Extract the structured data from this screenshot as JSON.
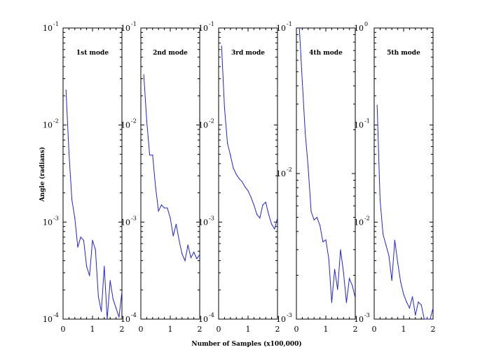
{
  "chart_data": {
    "type": "line",
    "xlabel": "Number of Samples (x100,000)",
    "ylabel": "Angle (radians)",
    "yscale": "log",
    "xlim": [
      0,
      2
    ],
    "x_ticks": [
      "0",
      "1",
      "2"
    ],
    "grid": false,
    "panels": [
      {
        "title": "1st mode",
        "ylim": [
          0.0001,
          0.1
        ],
        "y_ticks": [
          {
            "base": "10",
            "exp": "-1"
          },
          {
            "base": "10",
            "exp": "-2"
          },
          {
            "base": "10",
            "exp": "-3"
          },
          {
            "base": "10",
            "exp": "-4"
          }
        ],
        "series": [
          {
            "x": [
              0.1,
              0.2,
              0.3,
              0.4,
              0.5,
              0.6,
              0.7,
              0.8,
              0.9,
              1.0,
              1.1,
              1.2,
              1.3,
              1.4,
              1.5,
              1.6,
              1.7,
              1.8,
              1.9,
              2.0
            ],
            "y": [
              0.023,
              0.0052,
              0.0017,
              0.0011,
              0.00055,
              0.0007,
              0.00065,
              0.00035,
              0.00028,
              0.00065,
              0.00052,
              0.00017,
              0.00012,
              0.00035,
              0.0001,
              0.00025,
              0.00016,
              0.00013,
              0.000105,
              0.00019
            ]
          }
        ]
      },
      {
        "title": "2nd mode",
        "ylim": [
          0.0001,
          0.1
        ],
        "y_ticks": [
          {
            "base": "10",
            "exp": "-1"
          },
          {
            "base": "10",
            "exp": "-2"
          },
          {
            "base": "10",
            "exp": "-3"
          },
          {
            "base": "10",
            "exp": "-4"
          }
        ],
        "series": [
          {
            "x": [
              0.1,
              0.2,
              0.3,
              0.4,
              0.5,
              0.6,
              0.7,
              0.8,
              0.9,
              1.0,
              1.1,
              1.2,
              1.3,
              1.4,
              1.5,
              1.6,
              1.7,
              1.8,
              1.9,
              2.0
            ],
            "y": [
              0.033,
              0.011,
              0.0049,
              0.0049,
              0.0023,
              0.0013,
              0.0015,
              0.0014,
              0.0014,
              0.0011,
              0.00072,
              0.00095,
              0.00065,
              0.00047,
              0.0004,
              0.00058,
              0.00043,
              0.00049,
              0.00042,
              0.00046
            ]
          }
        ]
      },
      {
        "title": "3rd mode",
        "ylim": [
          0.0001,
          0.1
        ],
        "y_ticks": [
          {
            "base": "10",
            "exp": "-1"
          },
          {
            "base": "10",
            "exp": "-2"
          },
          {
            "base": "10",
            "exp": "-3"
          },
          {
            "base": "10",
            "exp": "-4"
          }
        ],
        "series": [
          {
            "x": [
              0.1,
              0.2,
              0.3,
              0.4,
              0.5,
              0.6,
              0.7,
              0.8,
              0.9,
              1.0,
              1.1,
              1.2,
              1.3,
              1.4,
              1.5,
              1.6,
              1.7,
              1.8,
              1.9,
              2.0
            ],
            "y": [
              0.065,
              0.015,
              0.0065,
              0.0049,
              0.0036,
              0.0031,
              0.0028,
              0.0026,
              0.0023,
              0.0021,
              0.0018,
              0.0015,
              0.0012,
              0.0011,
              0.0015,
              0.0016,
              0.0012,
              0.00095,
              0.00085,
              0.0011
            ]
          }
        ]
      },
      {
        "title": "4th mode",
        "ylim": [
          0.001,
          0.1
        ],
        "y_ticks": [
          {
            "base": "10",
            "exp": "-1"
          },
          {
            "base": "10",
            "exp": "-2"
          },
          {
            "base": "10",
            "exp": "-3"
          }
        ],
        "series": [
          {
            "x": [
              0.1,
              0.2,
              0.3,
              0.4,
              0.5,
              0.6,
              0.7,
              0.8,
              0.9,
              1.0,
              1.1,
              1.2,
              1.3,
              1.4,
              1.5,
              1.6,
              1.7,
              1.8,
              1.9,
              2.0
            ],
            "y": [
              0.1,
              0.043,
              0.019,
              0.011,
              0.0055,
              0.0048,
              0.005,
              0.0044,
              0.0034,
              0.0035,
              0.0026,
              0.0013,
              0.0022,
              0.0016,
              0.003,
              0.0021,
              0.0013,
              0.0019,
              0.0017,
              0.0014
            ]
          }
        ]
      },
      {
        "title": "5th mode",
        "ylim": [
          0.001,
          1
        ],
        "y_ticks": [
          {
            "base": "10",
            "exp": "0"
          },
          {
            "base": "10",
            "exp": "-1"
          },
          {
            "base": "10",
            "exp": "-2"
          },
          {
            "base": "10",
            "exp": "-3"
          }
        ],
        "series": [
          {
            "x": [
              0.1,
              0.2,
              0.3,
              0.4,
              0.5,
              0.6,
              0.7,
              0.8,
              0.9,
              1.0,
              1.1,
              1.2,
              1.3,
              1.4,
              1.5,
              1.6,
              1.7,
              1.8,
              1.9,
              2.0
            ],
            "y": [
              0.16,
              0.017,
              0.0075,
              0.0058,
              0.0045,
              0.0025,
              0.0065,
              0.0038,
              0.0024,
              0.0018,
              0.0015,
              0.0013,
              0.0017,
              0.0011,
              0.0015,
              0.0014,
              0.00085,
              0.00088,
              0.00095,
              0.0013
            ]
          }
        ]
      }
    ],
    "colors": {
      "series": "#2222dd",
      "axes": "#000000"
    }
  }
}
